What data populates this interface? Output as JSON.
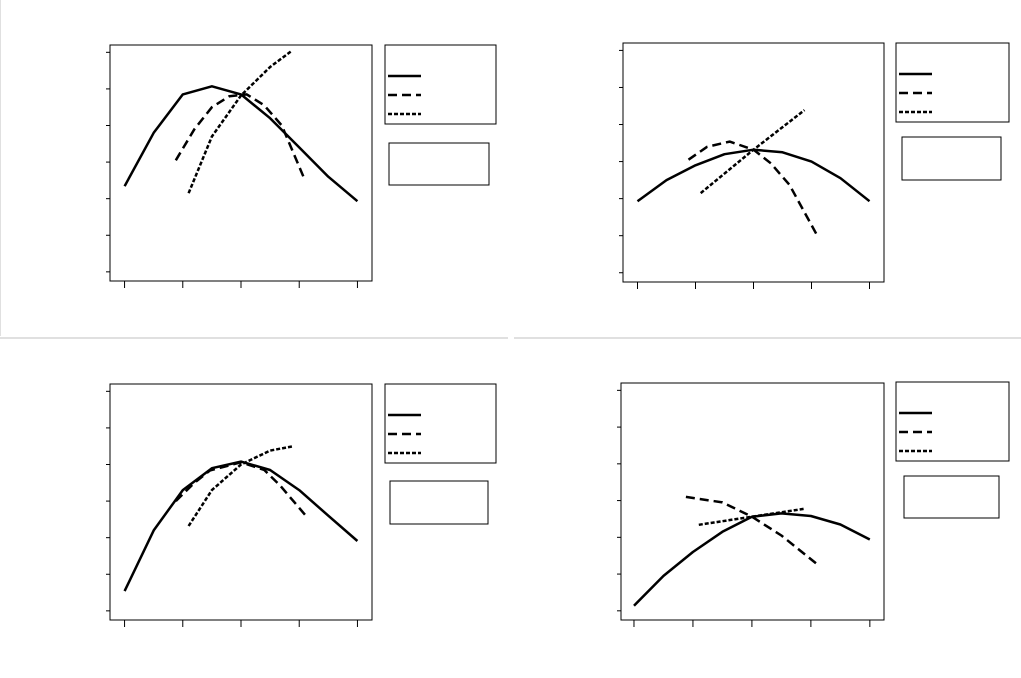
{
  "chart_data": [
    {
      "type": "line",
      "xlim": [
        -0.25,
        4.25
      ],
      "ylim": [
        -0.25,
        6.2
      ],
      "xticks": [
        0,
        1,
        2,
        3,
        4
      ],
      "yticks": [
        0,
        1,
        2,
        3,
        4,
        5,
        6
      ],
      "series": [
        {
          "color": "#000000",
          "dash": "solid",
          "x": [
            0,
            0.5,
            1,
            1.5,
            2,
            2.5,
            3,
            3.5,
            4
          ],
          "values": [
            2.34,
            3.8,
            4.85,
            5.07,
            4.85,
            4.2,
            3.4,
            2.6,
            1.93
          ]
        },
        {
          "color": "#000000",
          "dash": "dashed",
          "x": [
            0.88,
            1.2,
            1.5,
            1.8,
            2.1,
            2.4,
            2.7,
            3.1
          ],
          "values": [
            3.05,
            3.9,
            4.5,
            4.8,
            4.85,
            4.55,
            4.0,
            2.5
          ]
        },
        {
          "color": "#000000",
          "dash": "dotted",
          "x": [
            1.1,
            1.5,
            2,
            2.5,
            2.88
          ],
          "values": [
            2.15,
            3.7,
            4.82,
            5.6,
            6.05
          ]
        }
      ]
    },
    {
      "type": "line",
      "xlim": [
        -0.25,
        4.25
      ],
      "ylim": [
        -0.25,
        6.2
      ],
      "xticks": [
        0,
        1,
        2,
        3,
        4
      ],
      "yticks": [
        0,
        1,
        2,
        3,
        4,
        5,
        6
      ],
      "series": [
        {
          "color": "#000000",
          "dash": "solid",
          "x": [
            0,
            0.5,
            1,
            1.5,
            2,
            2.5,
            3,
            3.5,
            4
          ],
          "values": [
            1.93,
            2.5,
            2.9,
            3.2,
            3.32,
            3.25,
            3.0,
            2.55,
            1.93
          ]
        },
        {
          "color": "#000000",
          "dash": "dashed",
          "x": [
            0.88,
            1.2,
            1.59,
            2,
            2.3,
            2.62,
            3.1
          ],
          "values": [
            3.05,
            3.4,
            3.54,
            3.32,
            2.95,
            2.37,
            1.0
          ]
        },
        {
          "color": "#000000",
          "dash": "dotted",
          "x": [
            1.09,
            2,
            2.88
          ],
          "values": [
            2.15,
            3.32,
            4.39
          ]
        }
      ]
    },
    {
      "type": "line",
      "xlim": [
        -0.25,
        4.25
      ],
      "ylim": [
        -0.25,
        6.2
      ],
      "xticks": [
        0,
        1,
        2,
        3,
        4
      ],
      "yticks": [
        0,
        1,
        2,
        3,
        4,
        5,
        6
      ],
      "series": [
        {
          "color": "#000000",
          "dash": "solid",
          "x": [
            0,
            0.5,
            1,
            1.5,
            2,
            2.5,
            3,
            3.5,
            4
          ],
          "values": [
            0.54,
            2.2,
            3.3,
            3.9,
            4.08,
            3.85,
            3.3,
            2.6,
            1.91
          ]
        },
        {
          "color": "#000000",
          "dash": "dashed",
          "x": [
            0.88,
            1.2,
            1.47,
            2,
            2.4,
            2.67,
            3.12
          ],
          "values": [
            3.0,
            3.5,
            3.84,
            4.06,
            3.85,
            3.43,
            2.59
          ]
        },
        {
          "color": "#000000",
          "dash": "dotted",
          "x": [
            1.1,
            1.5,
            2,
            2.5,
            2.9
          ],
          "values": [
            2.32,
            3.3,
            4.0,
            4.38,
            4.5
          ]
        }
      ]
    },
    {
      "type": "line",
      "xlim": [
        -0.22,
        4.24
      ],
      "ylim": [
        -0.25,
        6.2
      ],
      "xticks": [
        0,
        1,
        2,
        3,
        4
      ],
      "yticks": [
        0,
        1,
        2,
        3,
        4,
        5,
        6
      ],
      "series": [
        {
          "color": "#000000",
          "dash": "solid",
          "x": [
            0,
            0.5,
            1,
            1.5,
            2,
            2.5,
            3,
            3.5,
            4
          ],
          "values": [
            0.14,
            0.95,
            1.6,
            2.15,
            2.56,
            2.65,
            2.58,
            2.35,
            1.94
          ]
        },
        {
          "color": "#000000",
          "dash": "dashed",
          "x": [
            0.88,
            1.5,
            2,
            2.5,
            3.12
          ],
          "values": [
            3.1,
            2.95,
            2.56,
            2.05,
            1.25
          ]
        },
        {
          "color": "#000000",
          "dash": "dotted",
          "x": [
            1.1,
            2,
            2.9
          ],
          "values": [
            2.34,
            2.56,
            2.78
          ]
        }
      ]
    }
  ]
}
